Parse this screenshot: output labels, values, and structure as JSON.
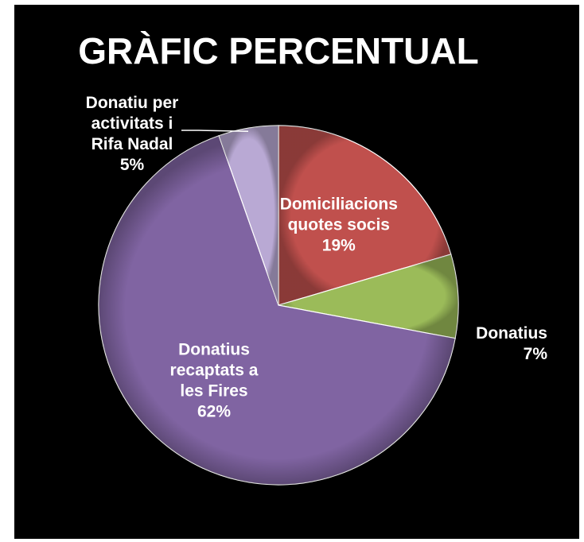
{
  "chart_data": {
    "type": "pie",
    "title": "GRÀFIC PERCENTUAL",
    "slices": [
      {
        "label": [
          "Domiciliacions",
          "quotes socis"
        ],
        "value_label": "19%",
        "value": 19,
        "color": "#c0504d"
      },
      {
        "label": [
          "Donatius"
        ],
        "value_label": "7%",
        "value": 7,
        "color": "#9bbb59"
      },
      {
        "label": [
          "Donatius",
          "recaptats a",
          "les Fires"
        ],
        "value_label": "62%",
        "value": 62,
        "color": "#8064a2"
      },
      {
        "label": [
          "Donatiu per",
          "activitats i",
          "Rifa Nadal"
        ],
        "value_label": "5%",
        "value": 5,
        "color": "#b9a9d4"
      }
    ],
    "legend": "none"
  }
}
